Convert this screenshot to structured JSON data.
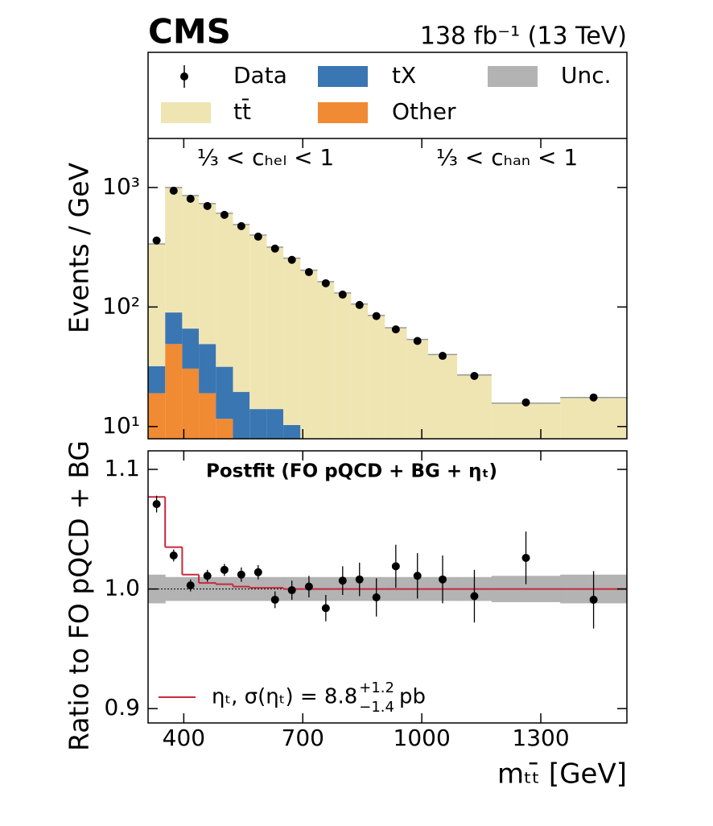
{
  "chart_data": [
    {
      "type": "stacked_histogram",
      "title": "CMS",
      "subtitle": "138 fb⁻¹ (13 TeV)",
      "ylabel": "Events / GeV",
      "annotations": [
        "⅓ < cₕₑₗ < 1",
        "⅓ < cₕₐₙ < 1"
      ],
      "bins": [
        310,
        353,
        396,
        438,
        481,
        524,
        566,
        609,
        651,
        694,
        737,
        779,
        822,
        864,
        907,
        962,
        1016,
        1089,
        1176,
        1349,
        1517
      ],
      "xlim": [
        310,
        1517
      ],
      "log_scale": true,
      "ylim": [
        7.9,
        2570
      ],
      "yticks": [
        {
          "value": 10,
          "label": "10¹"
        },
        {
          "value": 100,
          "label": "10²"
        },
        {
          "value": 1000,
          "label": "10³"
        }
      ],
      "series": [
        {
          "name": "Other",
          "color": "#f08a33",
          "values": [
            19,
            49,
            30.5,
            19,
            11.6,
            4,
            4,
            4,
            4,
            3,
            2,
            2,
            2,
            2,
            2,
            2,
            2,
            2,
            2,
            2
          ]
        },
        {
          "name": "tX",
          "color": "#3a76b2",
          "values": [
            13,
            41,
            35.5,
            30,
            20,
            15.5,
            10,
            10,
            6.3,
            3,
            2,
            2,
            2,
            2,
            2,
            2,
            2,
            2,
            2,
            2
          ]
        },
        {
          "name": "tt̄",
          "color": "#efe5b3",
          "values": [
            305,
            910,
            790,
            684,
            577,
            470,
            386,
            303,
            246,
            197,
            159,
            127,
            102,
            81,
            63,
            49.5,
            36,
            23,
            11.7,
            13.5
          ]
        }
      ],
      "data": {
        "name": "Data",
        "color": "#000000",
        "values": [
          360,
          940,
          805,
          700,
          590,
          475,
          388,
          308,
          248,
          196,
          158,
          127,
          104,
          84,
          65,
          52,
          39,
          26.5,
          15.9,
          17.5
        ]
      },
      "uncertainty": {
        "name": "Unc.",
        "color": "#b3b3b3"
      }
    },
    {
      "type": "ratio",
      "annotation": "Postfit (FO pQCD + BG + ηₜ)",
      "ylabel": "Ratio to FO pQCD + BG",
      "xlabel": "mₜₜ̄ [GeV]",
      "xlim": [
        310,
        1517
      ],
      "xticks": [
        400,
        700,
        1000,
        1300
      ],
      "ylim": [
        0.888,
        1.1155
      ],
      "yticks": [
        {
          "value": 0.9,
          "label": "0.9"
        },
        {
          "value": 1,
          "label": "1.0"
        },
        {
          "value": 1.1,
          "label": "1.1"
        }
      ],
      "data": {
        "values": [
          1.071,
          1.028,
          1.003,
          1.011,
          1.016,
          1.012,
          1.014,
          0.991,
          0.999,
          1.002,
          0.984,
          1.007,
          1.008,
          0.993,
          1.019,
          1.011,
          1.008,
          0.994,
          1.026,
          0.991
        ],
        "errors": [
          0.007,
          0.005,
          0.005,
          0.005,
          0.005,
          0.006,
          0.006,
          0.007,
          0.008,
          0.009,
          0.011,
          0.012,
          0.014,
          0.016,
          0.018,
          0.019,
          0.02,
          0.022,
          0.022,
          0.024
        ]
      },
      "uncertainty": {
        "color": "#b3b3b3",
        "values": [
          0.012,
          0.01,
          0.01,
          0.01,
          0.01,
          0.01,
          0.01,
          0.01,
          0.01,
          0.01,
          0.01,
          0.01,
          0.01,
          0.01,
          0.01,
          0.01,
          0.01,
          0.01,
          0.011,
          0.012
        ]
      },
      "model": {
        "name": "ηₜ, σ(ηₜ) = 8.8",
        "up": "+1.2",
        "down": "−1.4",
        "unit": "pb",
        "color": "#c8283c",
        "values": [
          1.077,
          1.035,
          1.012,
          1.005,
          1.004,
          1.002,
          1.001,
          1.001,
          1,
          1,
          1,
          1,
          1,
          1,
          1,
          1,
          1,
          1,
          1,
          1
        ]
      }
    }
  ]
}
